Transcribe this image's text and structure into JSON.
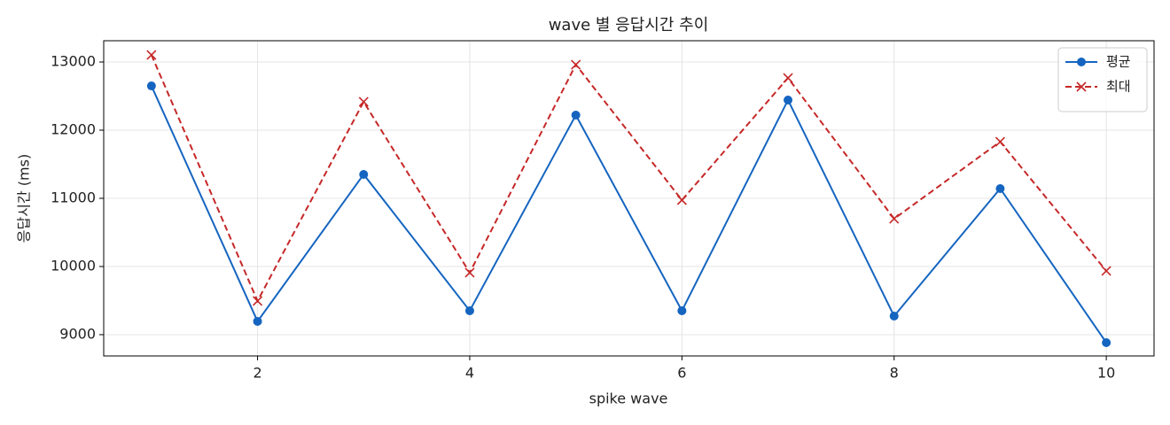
{
  "chart_data": {
    "type": "line",
    "title": "wave 별 응답시간 추이",
    "xlabel": "spike wave",
    "ylabel": "응답시간 (ms)",
    "x": [
      1,
      2,
      3,
      4,
      5,
      6,
      7,
      8,
      9,
      10
    ],
    "series": [
      {
        "name": "평균",
        "color": "#1565c0",
        "marker": "o",
        "dash": "solid",
        "values": [
          12649,
          9195,
          11351,
          9351,
          12221,
          9351,
          12442,
          9273,
          11143,
          8883
        ]
      },
      {
        "name": "최대",
        "color": "#c62828",
        "marker": "x",
        "dash": "dashed",
        "values": [
          13104,
          9494,
          12416,
          9909,
          12961,
          10974,
          12766,
          10701,
          11831,
          9935
        ]
      }
    ],
    "xlim": [
      0.55,
      10.45
    ],
    "xticks": [
      2,
      4,
      6,
      8,
      10
    ],
    "ylim": [
      8688,
      13312
    ],
    "yticks": [
      9000,
      10000,
      11000,
      12000,
      13000
    ],
    "grid": true,
    "legend": "upper right"
  }
}
